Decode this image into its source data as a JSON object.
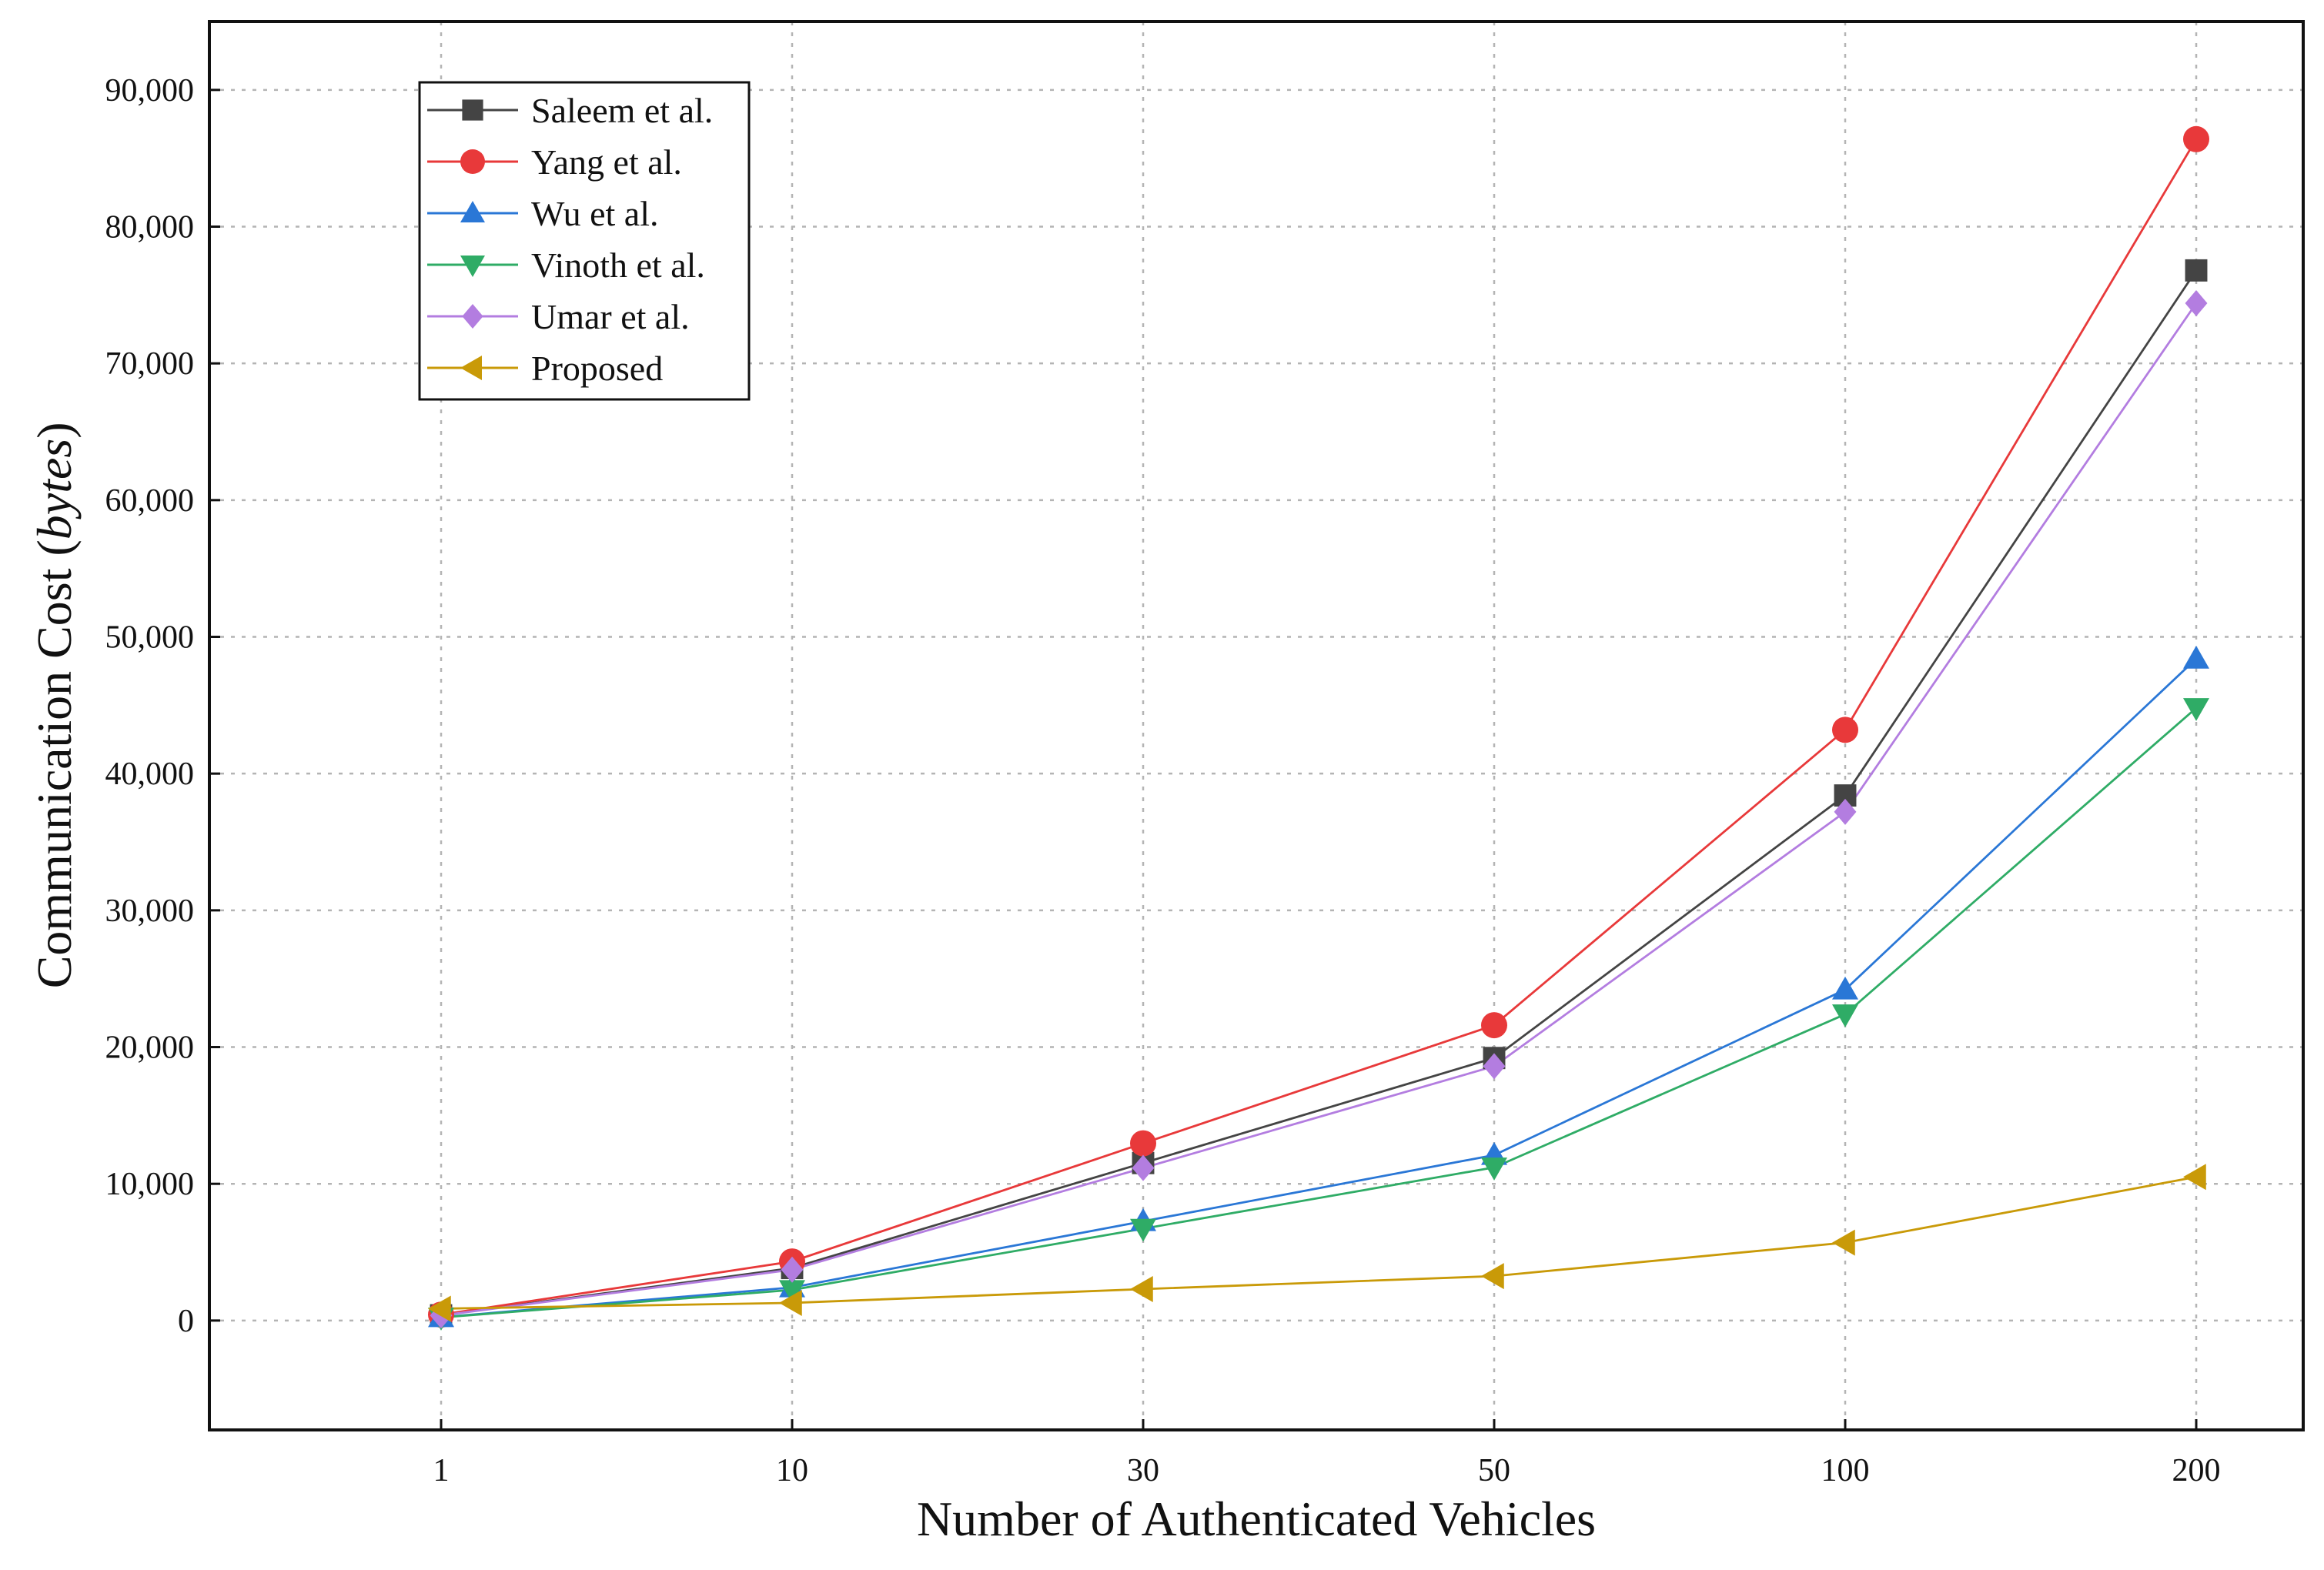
{
  "chart_data": {
    "type": "line",
    "title": "",
    "xlabel": "Number of Authenticated Vehicles",
    "ylabel_prefix": "Communication Cost (",
    "ylabel_unit": "bytes",
    "ylabel_suffix": ")",
    "categories": [
      "1",
      "10",
      "30",
      "50",
      "100",
      "200"
    ],
    "ylim": [
      -8000,
      95000
    ],
    "yticks": [
      0,
      10000,
      20000,
      30000,
      40000,
      50000,
      60000,
      70000,
      80000,
      90000
    ],
    "ytick_labels": [
      "0",
      "10,000",
      "20,000",
      "30,000",
      "40,000",
      "50,000",
      "60,000",
      "70,000",
      "80,000",
      "90,000"
    ],
    "grid": true,
    "legend_position": "top-left",
    "series": [
      {
        "name": "Saleem et al.",
        "color": "#444444",
        "marker": "square",
        "values": [
          384,
          3840,
          11520,
          19200,
          38400,
          76800
        ]
      },
      {
        "name": "Yang et al.",
        "color": "#e8393a",
        "marker": "circle",
        "values": [
          432,
          4320,
          12960,
          21600,
          43200,
          86400
        ]
      },
      {
        "name": "Wu et al.",
        "color": "#2a77d6",
        "marker": "triangle-up",
        "values": [
          242,
          2420,
          7260,
          12100,
          24200,
          48400
        ]
      },
      {
        "name": "Vinoth et al.",
        "color": "#2fac66",
        "marker": "triangle-down",
        "values": [
          224,
          2240,
          6720,
          11200,
          22400,
          44800
        ]
      },
      {
        "name": "Umar et al.",
        "color": "#b37de0",
        "marker": "diamond",
        "values": [
          372,
          3720,
          11160,
          18600,
          37200,
          74400
        ]
      },
      {
        "name": "Proposed",
        "color": "#c99a08",
        "marker": "triangle-left",
        "values": [
          868,
          1290,
          2300,
          3250,
          5700,
          10500
        ]
      }
    ]
  }
}
